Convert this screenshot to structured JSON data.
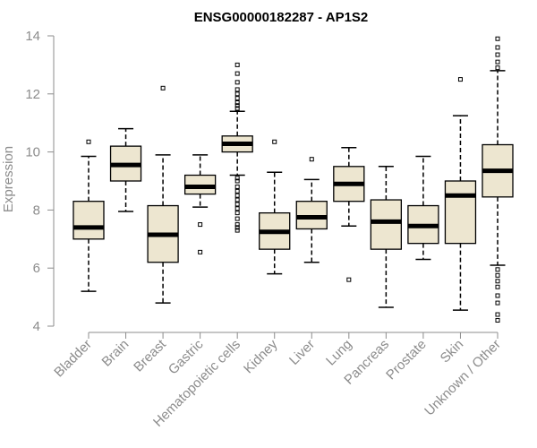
{
  "chart_data": {
    "type": "boxplot",
    "title": "ENSG00000182287 - AP1S2",
    "xlabel": "",
    "ylabel": "Expression",
    "ylim": [
      4,
      14
    ],
    "yticks": [
      4,
      6,
      8,
      10,
      12,
      14
    ],
    "grid": false,
    "legend": "none",
    "categories": [
      "Bladder",
      "Brain",
      "Breast",
      "Gastric",
      "Hematopoietic cells",
      "Kidney",
      "Liver",
      "Lung",
      "Pancreas",
      "Prostate",
      "Skin",
      "Unknown / Other"
    ],
    "boxes": [
      {
        "category": "Bladder",
        "whisker_low": 5.2,
        "q1": 7.0,
        "median": 7.4,
        "q3": 8.3,
        "whisker_high": 9.85,
        "outliers": [
          10.35
        ]
      },
      {
        "category": "Brain",
        "whisker_low": 7.95,
        "q1": 9.0,
        "median": 9.55,
        "q3": 10.2,
        "whisker_high": 10.8,
        "outliers": []
      },
      {
        "category": "Breast",
        "whisker_low": 4.8,
        "q1": 6.2,
        "median": 7.15,
        "q3": 8.15,
        "whisker_high": 9.9,
        "outliers": [
          12.2
        ]
      },
      {
        "category": "Gastric",
        "whisker_low": 8.1,
        "q1": 8.55,
        "median": 8.8,
        "q3": 9.2,
        "whisker_high": 9.9,
        "outliers": [
          7.5,
          6.55
        ]
      },
      {
        "category": "Hematopoietic cells",
        "whisker_low": 9.2,
        "q1": 10.0,
        "median": 10.28,
        "q3": 10.55,
        "whisker_high": 11.4,
        "outliers": [
          11.5,
          11.6,
          11.7,
          11.85,
          12.0,
          12.15,
          12.4,
          12.7,
          13.0,
          9.1,
          9.0,
          8.8,
          8.65,
          8.5,
          8.35,
          8.2,
          8.05,
          7.9,
          7.7,
          7.5,
          7.4,
          7.3
        ]
      },
      {
        "category": "Kidney",
        "whisker_low": 5.8,
        "q1": 6.65,
        "median": 7.25,
        "q3": 7.9,
        "whisker_high": 9.3,
        "outliers": [
          10.35
        ]
      },
      {
        "category": "Liver",
        "whisker_low": 6.2,
        "q1": 7.35,
        "median": 7.75,
        "q3": 8.3,
        "whisker_high": 9.05,
        "outliers": [
          9.75
        ]
      },
      {
        "category": "Lung",
        "whisker_low": 7.45,
        "q1": 8.3,
        "median": 8.9,
        "q3": 9.5,
        "whisker_high": 10.15,
        "outliers": [
          5.6
        ]
      },
      {
        "category": "Pancreas",
        "whisker_low": 4.65,
        "q1": 6.65,
        "median": 7.6,
        "q3": 8.35,
        "whisker_high": 9.5,
        "outliers": []
      },
      {
        "category": "Prostate",
        "whisker_low": 6.3,
        "q1": 6.85,
        "median": 7.45,
        "q3": 8.15,
        "whisker_high": 9.85,
        "outliers": []
      },
      {
        "category": "Skin",
        "whisker_low": 4.55,
        "q1": 6.85,
        "median": 8.5,
        "q3": 9.0,
        "whisker_high": 11.25,
        "outliers": [
          12.5
        ]
      },
      {
        "category": "Unknown / Other",
        "whisker_low": 6.1,
        "q1": 8.45,
        "median": 9.35,
        "q3": 10.25,
        "whisker_high": 12.8,
        "outliers": [
          12.9,
          13.1,
          13.35,
          13.6,
          13.9,
          5.95,
          5.75,
          5.55,
          5.35,
          5.05,
          4.8,
          4.4,
          4.2
        ]
      }
    ],
    "colors": {
      "box_fill": "#ede6d0",
      "box_stroke": "#000000",
      "median": "#000000",
      "axis": "#8c8c8c",
      "text": "#8c8c8c"
    }
  }
}
